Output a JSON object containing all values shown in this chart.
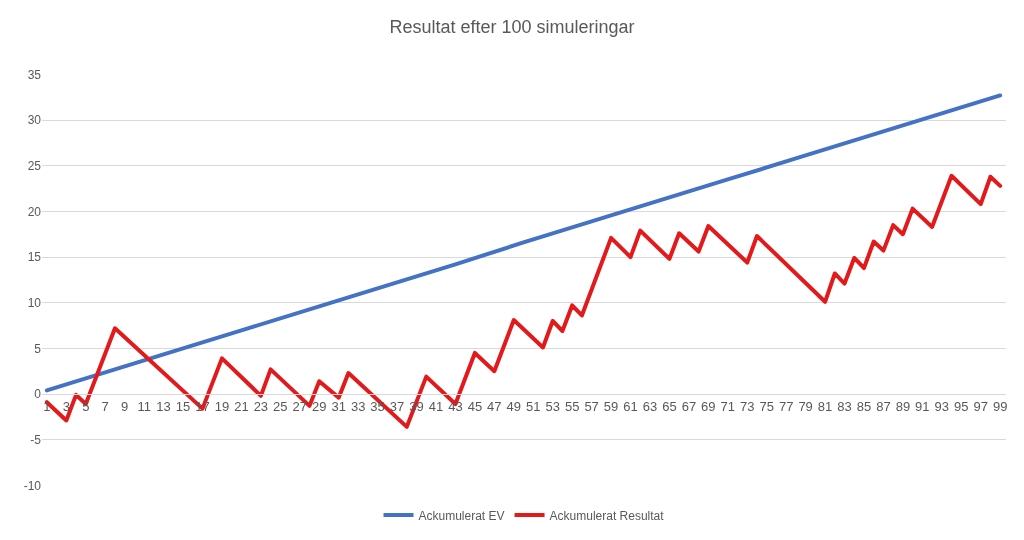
{
  "chart_data": {
    "type": "line",
    "title": "Resultat efter 100 simuleringar",
    "xlim": [
      0.5,
      99.6
    ],
    "xticks": [
      1,
      3,
      5,
      7,
      9,
      11,
      13,
      15,
      17,
      19,
      21,
      23,
      25,
      27,
      29,
      31,
      33,
      35,
      37,
      39,
      41,
      43,
      45,
      47,
      49,
      51,
      53,
      55,
      57,
      59,
      61,
      63,
      65,
      67,
      69,
      71,
      73,
      75,
      77,
      79,
      81,
      83,
      85,
      87,
      89,
      91,
      93,
      95,
      97,
      99
    ],
    "ylim": [
      -10,
      35
    ],
    "yticks": [
      -10,
      -5,
      0,
      5,
      10,
      15,
      20,
      25,
      30,
      35
    ],
    "grid": "y",
    "legend": "bottom",
    "line_style": "solid",
    "marker": "none",
    "series": [
      {
        "name": "Ackumulerat EV",
        "color": "#4472c4",
        "x": [
          1,
          8,
          15,
          22,
          29,
          36,
          43,
          50,
          57,
          64,
          71,
          78,
          85,
          92,
          99
        ],
        "values": [
          0.4,
          2.7,
          5.0,
          7.3,
          9.6,
          11.9,
          14.2,
          16.6,
          18.9,
          21.2,
          23.5,
          25.8,
          28.1,
          30.4,
          32.7
        ]
      },
      {
        "name": "Ackumulerat Resultat",
        "color": "#e31a1c",
        "x": [
          1,
          3,
          4,
          5,
          8,
          17,
          19,
          23,
          24,
          28,
          29,
          31,
          32,
          38,
          40,
          43,
          45,
          47,
          49,
          52,
          53,
          54,
          55,
          56,
          59,
          61,
          62,
          65,
          66,
          68,
          69,
          73,
          74,
          81,
          82,
          83,
          84,
          85,
          86,
          87,
          88,
          89,
          90,
          92,
          94,
          97,
          98,
          99
        ],
        "values": [
          -0.9,
          -2.9,
          -0.1,
          -1.1,
          7.2,
          -1.6,
          3.9,
          -0.2,
          2.7,
          -1.3,
          1.4,
          -0.4,
          2.3,
          -3.6,
          1.9,
          -1.1,
          4.5,
          2.5,
          8.1,
          5.1,
          8.0,
          6.9,
          9.7,
          8.6,
          17.1,
          15.0,
          17.9,
          14.8,
          17.6,
          15.6,
          18.4,
          14.4,
          17.3,
          10.1,
          13.2,
          12.1,
          14.9,
          13.8,
          16.7,
          15.7,
          18.5,
          17.5,
          20.3,
          18.3,
          23.9,
          20.8,
          23.8,
          22.8
        ]
      }
    ]
  }
}
